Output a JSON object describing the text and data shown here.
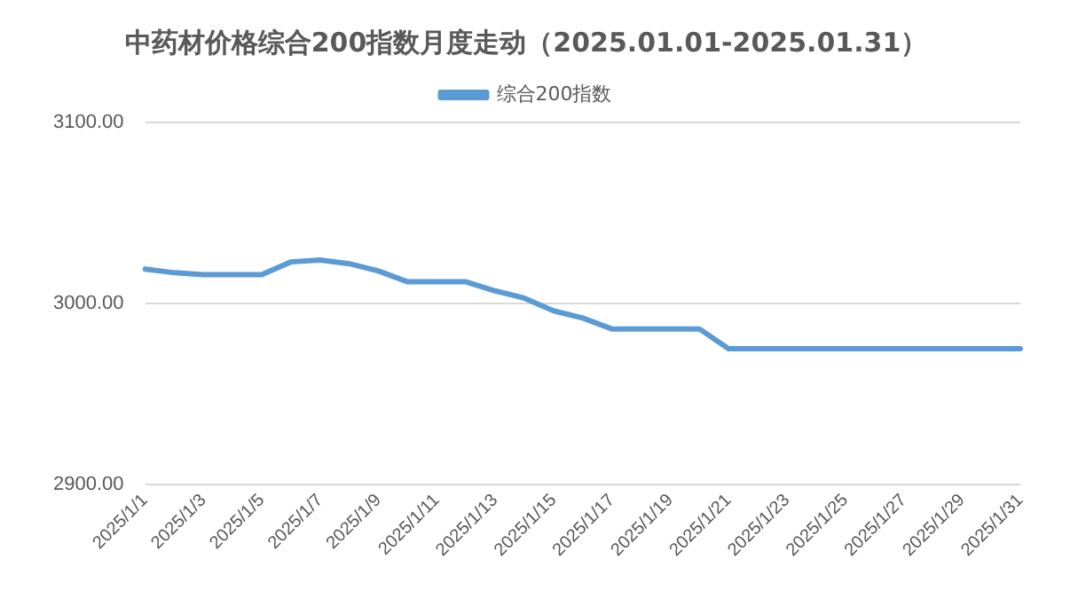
{
  "chart_data": {
    "type": "line",
    "title": "中药材价格综合200指数月度走动（2025.01.01-2025.01.31）",
    "categories": [
      "2025/1/1",
      null,
      "2025/1/3",
      null,
      "2025/1/5",
      null,
      "2025/1/7",
      null,
      "2025/1/9",
      null,
      "2025/1/11",
      null,
      "2025/1/13",
      null,
      "2025/1/15",
      null,
      "2025/1/17",
      null,
      "2025/1/19",
      null,
      "2025/1/21",
      null,
      "2025/1/23",
      null,
      "2025/1/25",
      null,
      "2025/1/27",
      null,
      "2025/1/29",
      null,
      "2025/1/31"
    ],
    "series": [
      {
        "name": "综合200指数",
        "color": "#5b9bd5",
        "values": [
          3019,
          3017,
          3016,
          3016,
          3016,
          3023,
          3024,
          3022,
          3018,
          3012,
          3012,
          3012,
          3007,
          3003,
          2996,
          2992,
          2986,
          2986,
          2986,
          2986,
          2975,
          2975,
          2975,
          2975,
          2975,
          2975,
          2975,
          2975,
          2975,
          2975,
          2975
        ]
      }
    ],
    "ylim": [
      2900,
      3100
    ],
    "yticks": [
      {
        "value": 2900,
        "label": "2900.00"
      },
      {
        "value": 3000,
        "label": "3000.00"
      },
      {
        "value": 3100,
        "label": "3100.00"
      }
    ],
    "grid": "y",
    "legend": "top",
    "marker": "none",
    "line_style": "solid"
  }
}
